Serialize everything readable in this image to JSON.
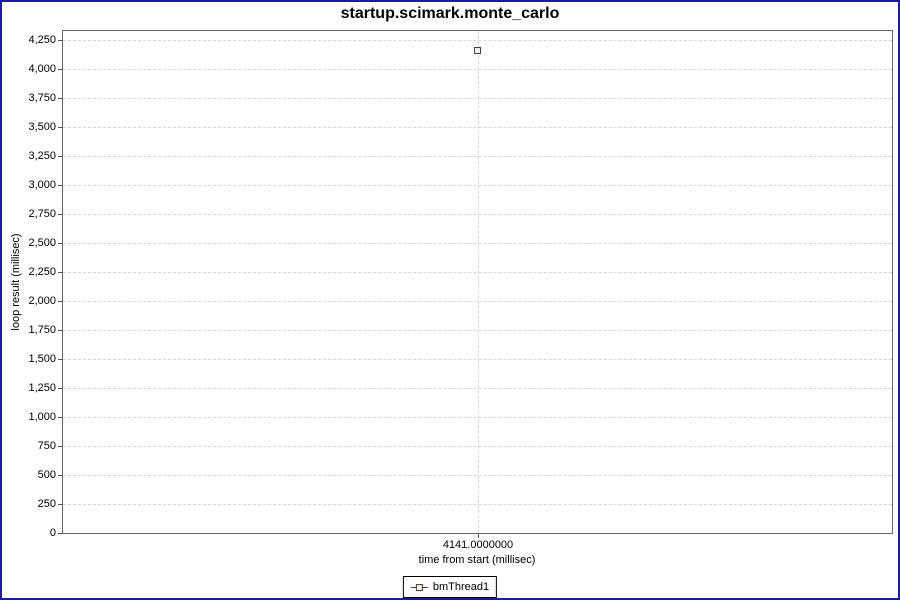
{
  "window": {
    "border_color": "#1b1b9d",
    "background_color": "#ffffff"
  },
  "chart_data": {
    "type": "scatter",
    "title": "startup.scimark.monte_carlo",
    "xlabel": "time from start (millisec)",
    "ylabel": "loop result (millisec)",
    "series": [
      {
        "name": "bmThread1",
        "points": [
          {
            "x": 4141.0,
            "y": 4155
          }
        ]
      }
    ],
    "x_ticks": [
      {
        "value": 4141.0,
        "label": "4141.0000000",
        "position_pct": 50
      }
    ],
    "y_ticks": [
      {
        "value": 0,
        "label": "0"
      },
      {
        "value": 250,
        "label": "250"
      },
      {
        "value": 500,
        "label": "500"
      },
      {
        "value": 750,
        "label": "750"
      },
      {
        "value": 1000,
        "label": "1,000"
      },
      {
        "value": 1250,
        "label": "1,250"
      },
      {
        "value": 1500,
        "label": "1,500"
      },
      {
        "value": 1750,
        "label": "1,750"
      },
      {
        "value": 2000,
        "label": "2,000"
      },
      {
        "value": 2250,
        "label": "2,250"
      },
      {
        "value": 2500,
        "label": "2,500"
      },
      {
        "value": 2750,
        "label": "2,750"
      },
      {
        "value": 3000,
        "label": "3,000"
      },
      {
        "value": 3250,
        "label": "3,250"
      },
      {
        "value": 3500,
        "label": "3,500"
      },
      {
        "value": 3750,
        "label": "3,750"
      },
      {
        "value": 4000,
        "label": "4,000"
      },
      {
        "value": 4250,
        "label": "4,250"
      }
    ],
    "ylim": [
      0,
      4327
    ],
    "grid": "dashed",
    "legend_position": "bottom-center",
    "colors": {
      "series_outline": "#5c382e",
      "series_fill": "#e9f5ee",
      "gridline": "#d6d6d6",
      "plot_border": "#666666",
      "tick_mark": "#555555"
    }
  },
  "legend": {
    "items": [
      {
        "label": "bmThread1"
      }
    ]
  }
}
